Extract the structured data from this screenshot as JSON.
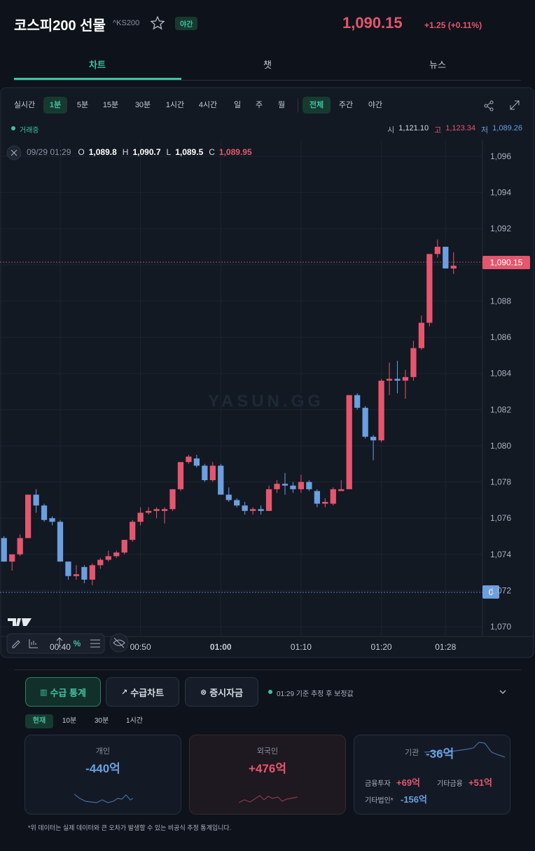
{
  "header": {
    "title": "코스피200 선물",
    "ticker": "^KS200",
    "badge": "야간",
    "price": "1,090.15",
    "change": "+1.25 (+0.11%)"
  },
  "tabs": [
    "차트",
    "챗",
    "뉴스"
  ],
  "toolbar": {
    "intervals": [
      "실시간",
      "1분",
      "5분",
      "15분",
      "30분",
      "1시간",
      "4시간",
      "일",
      "주",
      "월"
    ],
    "sessions": [
      "전체",
      "주간",
      "야간"
    ]
  },
  "status": "거래중",
  "day_stats": [
    {
      "label": "시",
      "value": "1,121.10"
    },
    {
      "label": "고",
      "value": "1,123.34"
    },
    {
      "label": "저",
      "value": "1,089.26"
    }
  ],
  "legend": {
    "time": "09/29 01:29",
    "fields": [
      {
        "label": "O",
        "value": "1,089.8"
      },
      {
        "label": "H",
        "value": "1,090.7"
      },
      {
        "label": "L",
        "value": "1,089.5"
      },
      {
        "label": "C",
        "value": "1,089.95"
      }
    ]
  },
  "chart_data": {
    "type": "candlestick",
    "watermark": "YASUN.GG",
    "up_color": "#e5566d",
    "down_color": "#6b9fe0",
    "open": [
      1074.9,
      1073.6,
      1074.0,
      1074.9,
      1077.3,
      1076.7,
      1076.0,
      1075.8,
      1073.6,
      1072.8,
      1073.3,
      1072.6,
      1073.4,
      1073.7,
      1073.9,
      1074.1,
      1074.8,
      1075.8,
      1076.3,
      1076.4,
      1076.4,
      1076.5,
      1077.6,
      1079.1,
      1079.3,
      1078.9,
      1078.1,
      1078.9,
      1077.3,
      1077.0,
      1076.7,
      1076.4,
      1076.5,
      1076.4,
      1077.6,
      1077.9,
      1077.8,
      1077.6,
      1078.0,
      1077.5,
      1076.8,
      1076.8,
      1077.5,
      1077.6,
      1082.8,
      1082.1,
      1080.5,
      1080.3,
      1083.6,
      1083.7,
      1083.6,
      1083.8,
      1085.4,
      1086.8,
      1090.6,
      1091.0,
      1089.8
    ],
    "high": [
      1075.0,
      1074.0,
      1075.1,
      1077.3,
      1077.6,
      1076.8,
      1076.1,
      1075.9,
      1073.6,
      1073.4,
      1073.4,
      1073.5,
      1073.8,
      1074.2,
      1074.2,
      1074.8,
      1075.9,
      1076.6,
      1076.6,
      1076.6,
      1076.6,
      1077.6,
      1079.1,
      1079.5,
      1079.5,
      1079.0,
      1079.1,
      1079.0,
      1077.7,
      1077.1,
      1076.9,
      1076.6,
      1076.7,
      1077.8,
      1078.1,
      1078.5,
      1078.0,
      1078.4,
      1078.1,
      1077.6,
      1077.1,
      1077.7,
      1078.1,
      1082.8,
      1082.9,
      1082.2,
      1080.6,
      1083.7,
      1084.6,
      1084.7,
      1084.2,
      1085.8,
      1087.2,
      1090.6,
      1091.4,
      1091.0,
      1090.7
    ],
    "low": [
      1073.6,
      1073.1,
      1073.9,
      1074.9,
      1076.3,
      1075.8,
      1075.6,
      1073.6,
      1072.6,
      1072.6,
      1072.4,
      1072.3,
      1073.2,
      1073.6,
      1073.8,
      1074.0,
      1074.7,
      1075.6,
      1076.2,
      1076.0,
      1075.7,
      1076.4,
      1077.5,
      1079.0,
      1078.8,
      1078.0,
      1078.0,
      1077.3,
      1076.9,
      1076.6,
      1076.2,
      1076.2,
      1076.2,
      1076.4,
      1077.4,
      1077.3,
      1077.4,
      1077.4,
      1077.5,
      1076.6,
      1076.6,
      1076.7,
      1077.5,
      1077.6,
      1082.0,
      1080.4,
      1079.2,
      1080.2,
      1082.8,
      1082.9,
      1082.6,
      1083.6,
      1085.3,
      1086.6,
      1090.4,
      1089.8,
      1089.5
    ],
    "close": [
      1073.6,
      1074.0,
      1074.9,
      1077.3,
      1076.7,
      1075.9,
      1075.8,
      1073.6,
      1072.8,
      1072.9,
      1072.6,
      1073.4,
      1073.7,
      1073.9,
      1074.1,
      1074.8,
      1075.8,
      1076.3,
      1076.4,
      1076.5,
      1076.5,
      1077.6,
      1079.1,
      1079.4,
      1078.9,
      1078.1,
      1078.9,
      1077.3,
      1077.0,
      1076.7,
      1076.4,
      1076.5,
      1076.4,
      1077.6,
      1077.9,
      1077.8,
      1077.6,
      1078.0,
      1077.6,
      1076.8,
      1076.9,
      1077.6,
      1077.6,
      1082.8,
      1082.1,
      1080.5,
      1080.3,
      1083.6,
      1083.7,
      1083.6,
      1083.8,
      1085.4,
      1086.8,
      1090.6,
      1091.0,
      1089.8,
      1089.95
    ],
    "xlim": [
      -0.5,
      59.6
    ],
    "xticks": [
      {
        "value": 7,
        "label": "00:40"
      },
      {
        "value": 17,
        "label": "00:50"
      },
      {
        "value": 27,
        "label": "01:00"
      },
      {
        "value": 37,
        "label": "01:10"
      },
      {
        "value": 47,
        "label": "01:20"
      },
      {
        "value": 55,
        "label": "01:28"
      }
    ],
    "ylim": [
      1069.46,
      1096.89
    ],
    "yticks": [
      {
        "value": 1070,
        "label": "1,070"
      },
      {
        "value": 1072,
        "label": "1,072"
      },
      {
        "value": 1074,
        "label": "1,074"
      },
      {
        "value": 1076,
        "label": "1,076"
      },
      {
        "value": 1078,
        "label": "1,078"
      },
      {
        "value": 1080,
        "label": "1,080"
      },
      {
        "value": 1082,
        "label": "1,082"
      },
      {
        "value": 1084,
        "label": "1,084"
      },
      {
        "value": 1086,
        "label": "1,086"
      },
      {
        "value": 1088,
        "label": "1,088"
      },
      {
        "value": 1090,
        "label": "1,090"
      },
      {
        "value": 1092,
        "label": "1,092"
      },
      {
        "value": 1094,
        "label": "1,094"
      },
      {
        "value": 1096,
        "label": "1,096"
      }
    ],
    "grid": true,
    "price_line": {
      "value": 1090.15,
      "label": "1,090.15"
    },
    "zero_tag": "0"
  },
  "flows": {
    "buttons": [
      "수급 통계",
      "수급차트",
      "증시자금"
    ],
    "note": "01:29 기준 추정 후 보정값",
    "periods": [
      "현재",
      "10분",
      "30분",
      "1시간"
    ],
    "cards": [
      {
        "label": "개인",
        "value": "-440억"
      },
      {
        "label": "외국인",
        "value": "+476억"
      },
      {
        "label": "기관",
        "value": "-36억"
      }
    ],
    "institution_details": [
      {
        "label": "금융투자",
        "value": "+69억"
      },
      {
        "label": "기타금융",
        "value": "+51억"
      },
      {
        "label": "기타법인*",
        "value": "-156억"
      }
    ],
    "footnote": "*위 데이터는 실제 데이터와 큰 오차가 발생할 수 있는 비공식 추정 통계입니다."
  }
}
